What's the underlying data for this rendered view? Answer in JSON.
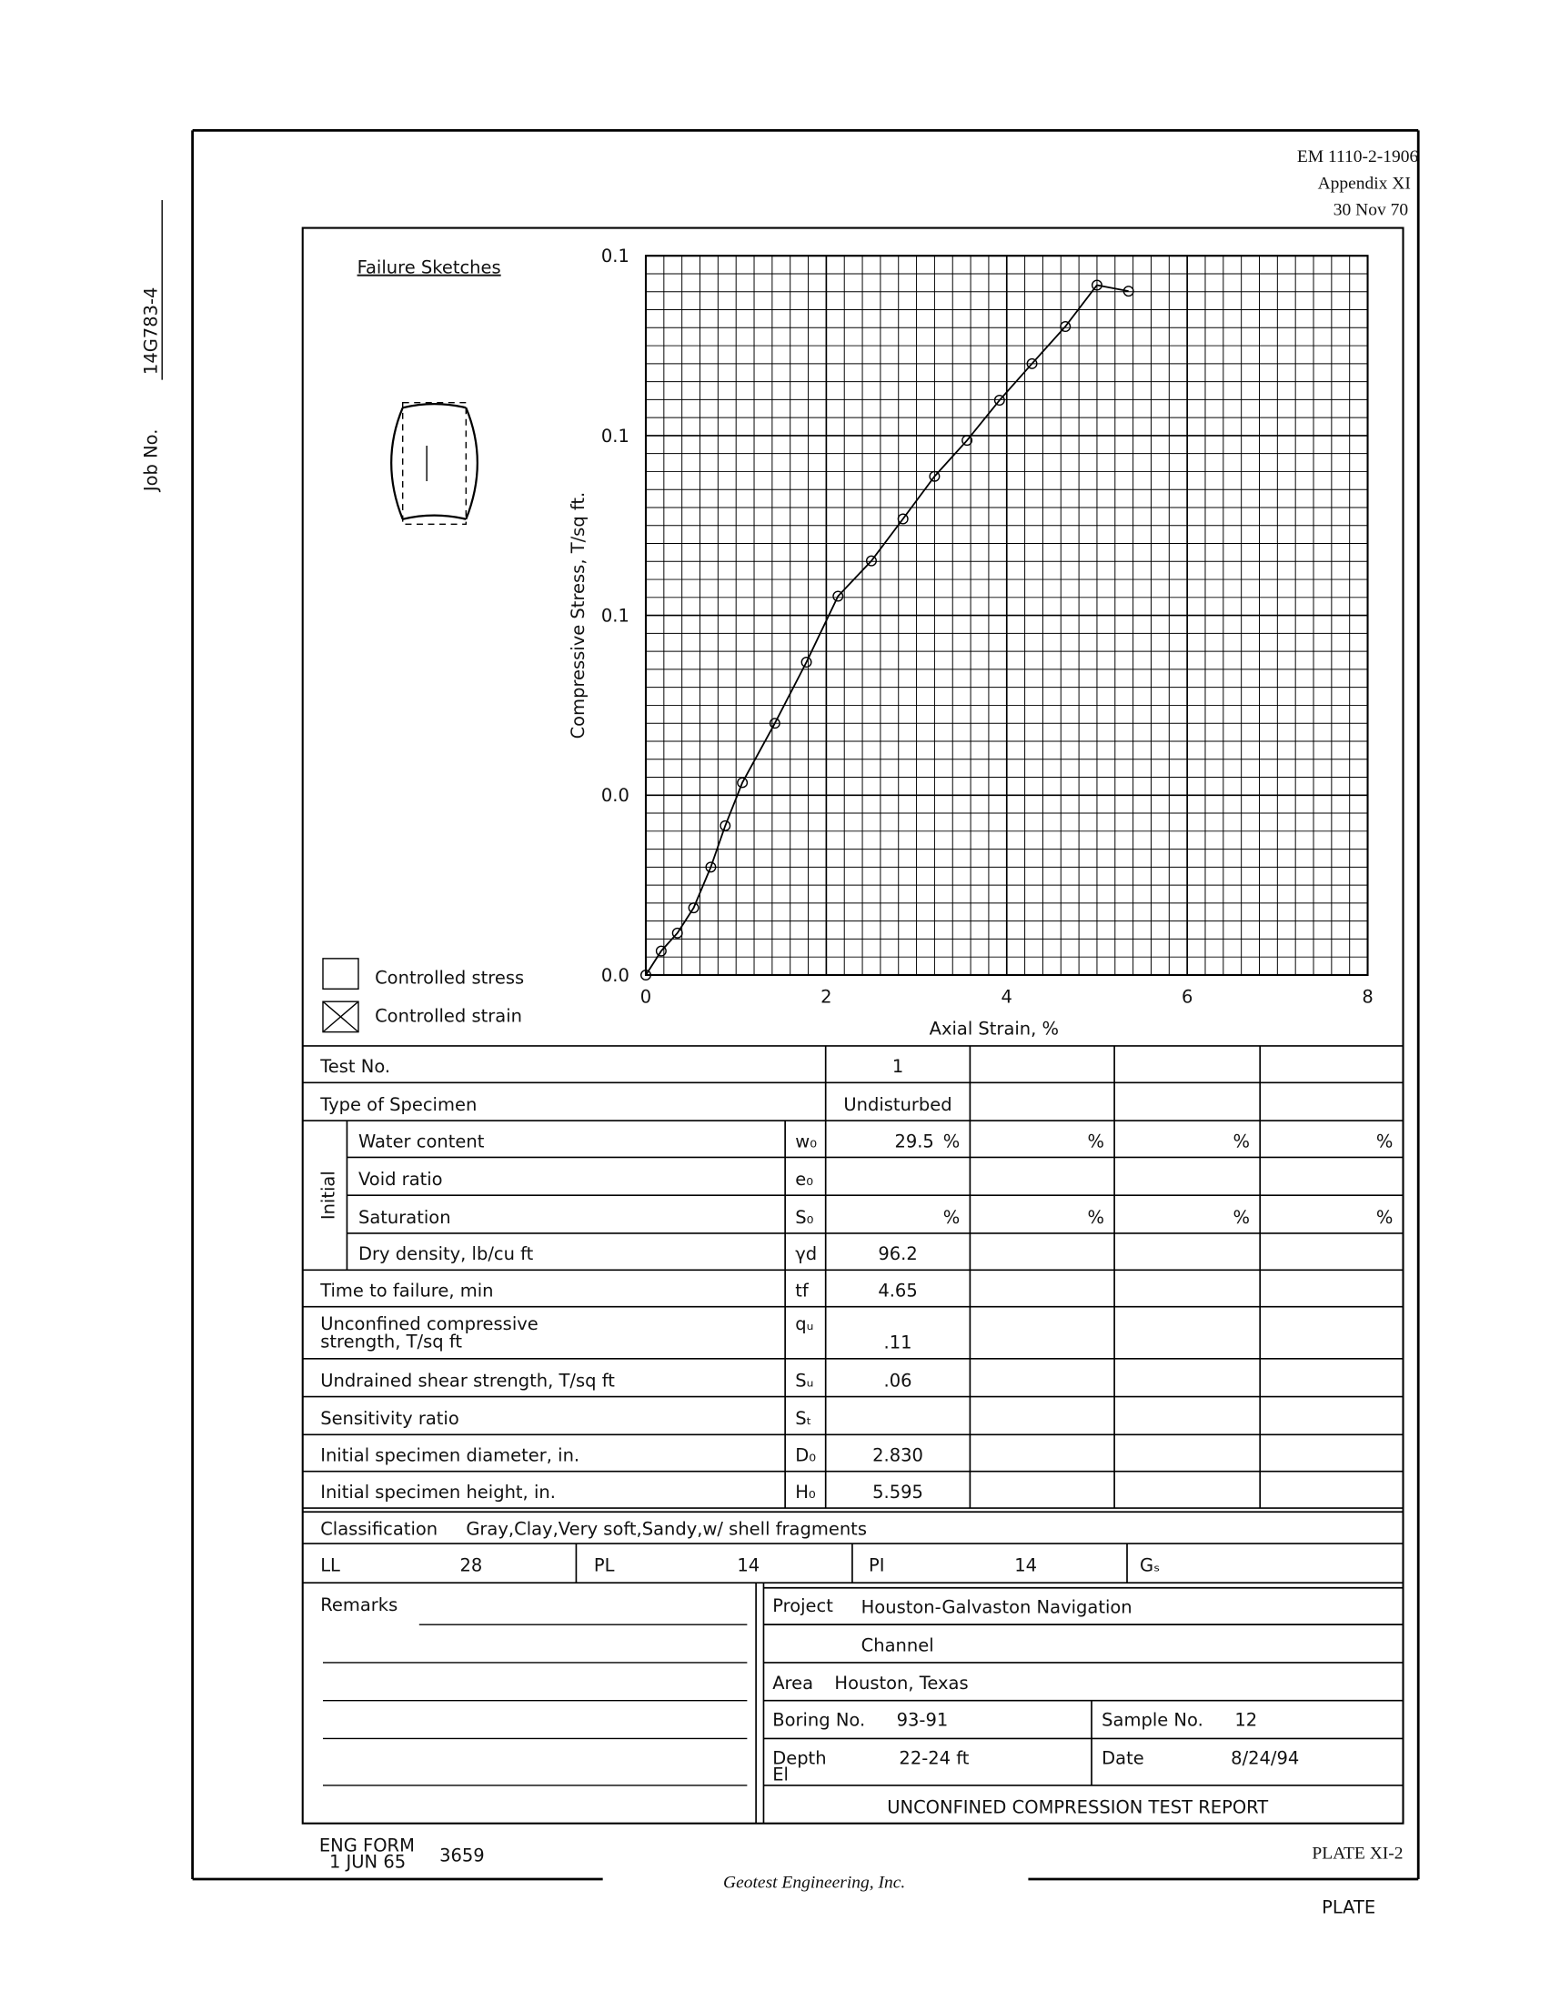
{
  "header": {
    "code": "EM 1110-2-1906",
    "appendix": "Appendix XI",
    "date": "30 Nov 70"
  },
  "job": {
    "label": "Job No.",
    "number": "14G783-4"
  },
  "failure_sketches": "Failure Sketches",
  "legend": {
    "stress": "Controlled stress",
    "strain": "Controlled strain"
  },
  "chart_data": {
    "type": "line",
    "x_label": "Axial Strain, %",
    "y_label": "Compressive Stress, T/sq ft.",
    "x": [
      0,
      0.17,
      0.35,
      0.53,
      0.72,
      0.88,
      1.07,
      1.43,
      1.78,
      2.13,
      2.5,
      2.85,
      3.2,
      3.56,
      3.92,
      4.28,
      4.65,
      5.0,
      5.35
    ],
    "values": [
      0,
      0.004,
      0.007,
      0.0112,
      0.018,
      0.0249,
      0.0321,
      0.042,
      0.0522,
      0.0632,
      0.0691,
      0.0761,
      0.0832,
      0.0892,
      0.0959,
      0.102,
      0.1082,
      0.1151,
      0.1141
    ],
    "color": "#000",
    "marker": "circle",
    "xlim": [
      0,
      8
    ],
    "xticks": [
      0,
      2,
      4,
      6,
      8
    ],
    "ylim": [
      0,
      0.12
    ],
    "yticks": [
      {
        "value": 0,
        "label": "0.0"
      },
      {
        "value": 0.03,
        "label": "0.0"
      },
      {
        "value": 0.06,
        "label": "0.1"
      },
      {
        "value": 0.09,
        "label": "0.1"
      },
      {
        "value": 0.12,
        "label": "0.1"
      }
    ],
    "grid": true
  },
  "table": {
    "test_no": {
      "label": "Test No.",
      "values": [
        "1"
      ]
    },
    "specimen_type": {
      "label": "Type of Specimen",
      "values": [
        "Undisturbed"
      ]
    },
    "initial_label": "Initial",
    "initial_rows": [
      {
        "label": "Water content",
        "symbol": "w₀",
        "values": [
          "29.5"
        ],
        "unit": "%"
      },
      {
        "label": "Void ratio",
        "symbol": "e₀"
      },
      {
        "label": "Saturation",
        "symbol": "S₀",
        "unit": "%"
      },
      {
        "label": "Dry density, lb/cu ft",
        "symbol": "γd",
        "values": [
          "96.2"
        ]
      }
    ],
    "rows": [
      {
        "label": "Time to failure, min",
        "symbol": "tf",
        "values": [
          "4.65"
        ]
      },
      {
        "label": [
          "Unconfined compressive",
          "strength, T/sq ft"
        ],
        "symbol": "qᵤ",
        "values": [
          ".11"
        ]
      },
      {
        "label": "Undrained shear strength, T/sq ft",
        "symbol": "Sᵤ",
        "values": [
          ".06"
        ]
      },
      {
        "label": "Sensitivity ratio",
        "symbol": "Sₜ"
      },
      {
        "label": "Initial specimen diameter, in.",
        "symbol": "D₀",
        "values": [
          "2.830"
        ]
      },
      {
        "label": "Initial specimen height, in.",
        "symbol": "H₀",
        "values": [
          "5.595"
        ]
      }
    ]
  },
  "classification": {
    "label": "Classification",
    "text": "Gray,Clay,Very soft,Sandy,w/ shell fragments"
  },
  "limits": [
    {
      "label": "LL",
      "value": "28"
    },
    {
      "label": "PL",
      "value": "14"
    },
    {
      "label": "PI",
      "value": "14"
    },
    {
      "label": "Gₛ"
    }
  ],
  "remarks": "Remarks",
  "project": {
    "label": "Project",
    "lines": [
      "Houston-Galvaston Navigation",
      "Channel"
    ]
  },
  "area": {
    "label": "Area",
    "value": "Houston, Texas"
  },
  "boring": {
    "label": "Boring No.",
    "value": "93-91"
  },
  "sample": {
    "label": "Sample No.",
    "value": "12"
  },
  "depth": {
    "label": "Depth",
    "value": "22-24 ft"
  },
  "elevation": "El",
  "date": {
    "label": "Date",
    "value": "8/24/94"
  },
  "report_title": "UNCONFINED COMPRESSION TEST REPORT",
  "footer": {
    "form": "ENG FORM",
    "form_date": "1 JUN 65",
    "form_number": "3659",
    "plate": "PLATE XI-2",
    "company": "Geotest Engineering, Inc.",
    "plate_label": "PLATE"
  }
}
